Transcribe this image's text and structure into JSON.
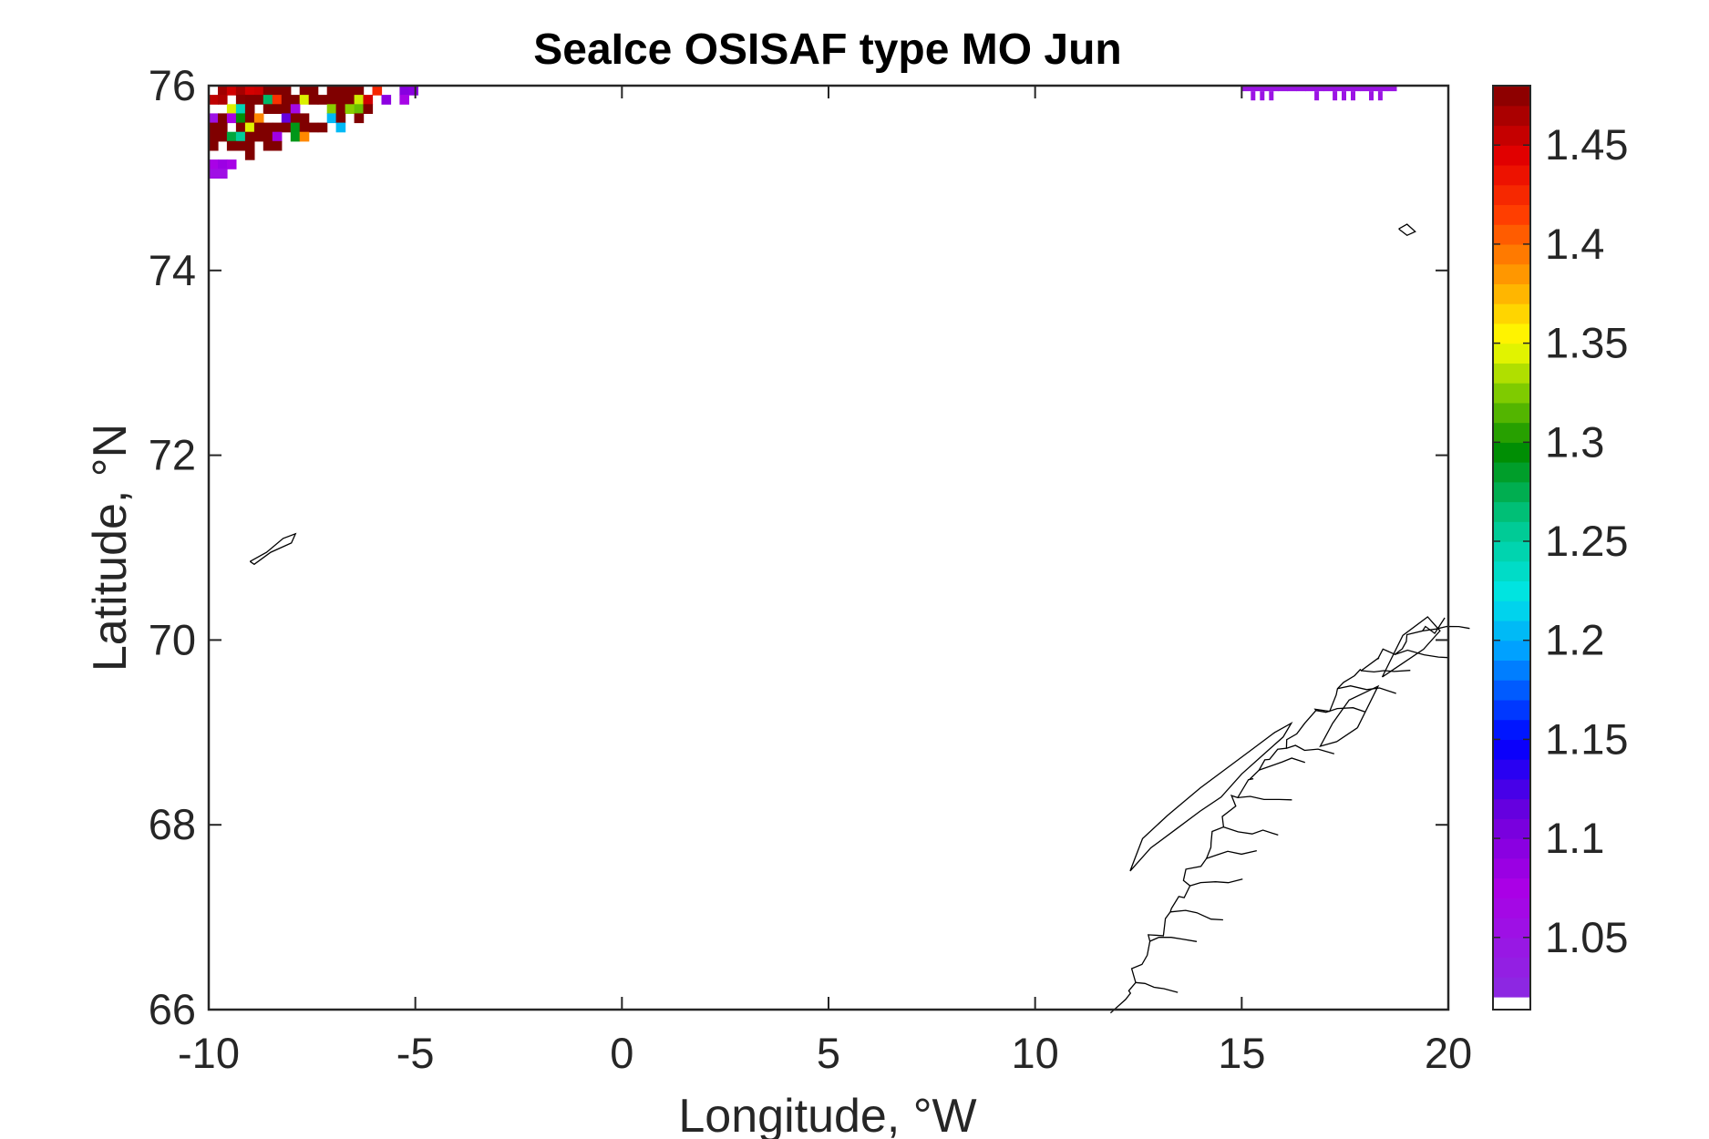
{
  "chart_data": {
    "type": "heatmap",
    "title": "SeaIce OSISAF type MO Jun",
    "xlabel": "Longitude, °W",
    "ylabel": "Latitude, °N",
    "xlim": [
      -10,
      20
    ],
    "ylim": [
      66,
      76
    ],
    "xticks": [
      -10,
      -5,
      0,
      5,
      10,
      15,
      20
    ],
    "yticks": [
      66,
      68,
      70,
      72,
      74,
      76
    ],
    "grid": false,
    "colorbar": {
      "min": 1.02,
      "max": 1.48,
      "colormap": "jet-like (purple to dark red), white below minimum",
      "ticks": [
        1.05,
        1.1,
        1.15,
        1.2,
        1.25,
        1.3,
        1.35,
        1.4,
        1.45
      ]
    },
    "regions": [
      {
        "description": "sea ice type values near upper-left corner",
        "lon_range": [
          -10,
          -4.3
        ],
        "lat_range": [
          74.9,
          76
        ],
        "values": "1.05–1.48, highest (~1.48) at corner"
      },
      {
        "description": "sea ice type values near top-right",
        "lon_range": [
          15,
          18.6
        ],
        "lat_range": [
          75.8,
          76
        ],
        "value": 1.05
      }
    ],
    "coastlines": [
      "Jan Mayen",
      "Bjørnøya",
      "Northern Norway coast"
    ]
  }
}
